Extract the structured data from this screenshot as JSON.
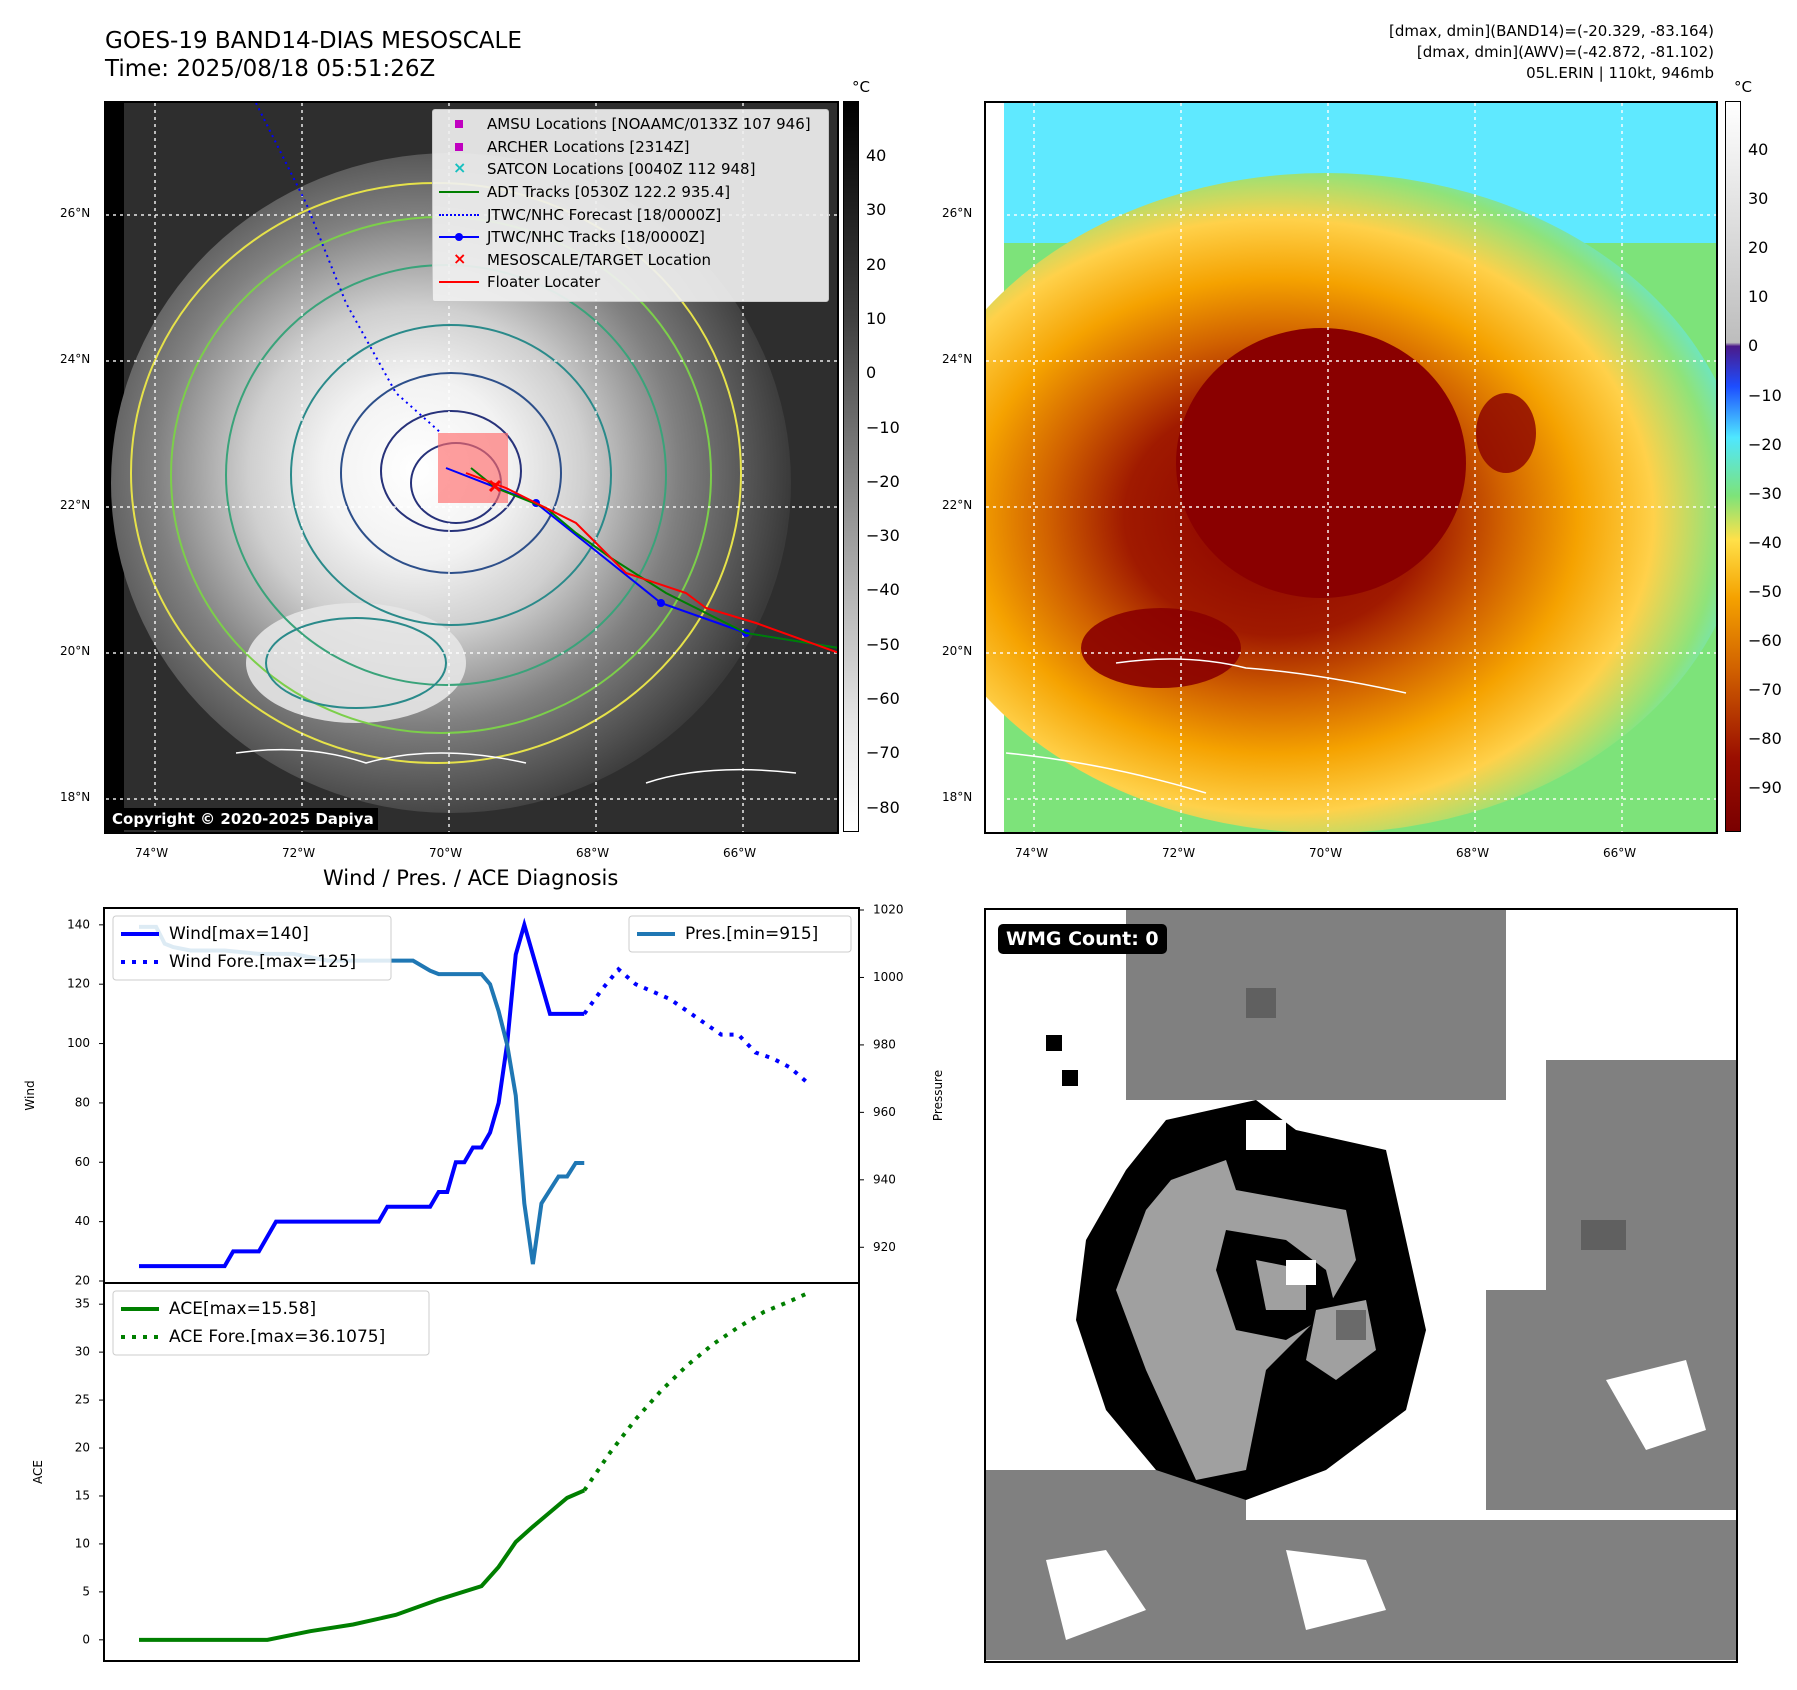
{
  "header": {
    "title_line1": "GOES-19 BAND14-DIAS MESOSCALE",
    "title_line2": "Time: 2025/08/18 05:51:26Z",
    "info_line1": "[dmax, dmin](BAND14)=(-20.329, -83.164)",
    "info_line2": "[dmax, dmin](AWV)=(-42.872, -81.102)",
    "info_line3": "05L.ERIN | 110kt, 946mb"
  },
  "maps": {
    "lat_labels": [
      "26°N",
      "24°N",
      "22°N",
      "20°N",
      "18°N"
    ],
    "lon_labels": [
      "74°W",
      "72°W",
      "70°W",
      "68°W",
      "66°W"
    ],
    "copyright": "Copyright © 2020-2025 Dapiya",
    "colorbar_unit": "°C",
    "band14_colorbar_ticks": [
      "40",
      "30",
      "20",
      "10",
      "0",
      "−10",
      "−20",
      "−30",
      "−40",
      "−50",
      "−60",
      "−70",
      "−80"
    ],
    "awv_colorbar_ticks": [
      "40",
      "30",
      "20",
      "10",
      "0",
      "−10",
      "−20",
      "−30",
      "−40",
      "−50",
      "−60",
      "−70",
      "−80",
      "−90"
    ],
    "colors": {
      "warm": "#f5a200",
      "cold": "#7a0000",
      "moist": "#4fe7ff",
      "dry": "#7de37a"
    }
  },
  "map_legend": [
    {
      "label": "AMSU Locations [NOAAMC/0133Z 107 946]",
      "symbol": "square",
      "color": "#c000c0"
    },
    {
      "label": "ARCHER Locations [2314Z]",
      "symbol": "square",
      "color": "#c000c0"
    },
    {
      "label": "SATCON Locations [0040Z 112 948]",
      "symbol": "x",
      "color": "#18c0c0"
    },
    {
      "label": "ADT Tracks [0530Z 122.2 935.4]",
      "symbol": "line",
      "color": "#007f00"
    },
    {
      "label": "JTWC/NHC Forecast [18/0000Z]",
      "symbol": "dotted",
      "color": "#0000ff"
    },
    {
      "label": "JTWC/NHC Tracks [18/0000Z]",
      "symbol": "line-dot",
      "color": "#0000ff"
    },
    {
      "label": "MESOSCALE/TARGET Location",
      "symbol": "x",
      "color": "#ff0000"
    },
    {
      "label": "Floater Locater",
      "symbol": "line",
      "color": "#ff0000"
    }
  ],
  "wmg": {
    "label": "WMG Count: 0"
  },
  "chart_data": [
    {
      "type": "line",
      "title": "Wind / Pres. / ACE Diagnosis",
      "ylabel": "Wind",
      "ylabel_right": "Pressure",
      "ylim": [
        20,
        145
      ],
      "ylim_right": [
        910,
        1020
      ],
      "yticks": [
        20,
        40,
        60,
        80,
        100,
        120,
        140
      ],
      "yticks_right": [
        920,
        940,
        960,
        980,
        1000,
        1020
      ],
      "x_range": [
        0,
        80
      ],
      "series": [
        {
          "name": "Wind[max=140]",
          "color": "#0000ff",
          "style": "solid",
          "axis": "left",
          "x": [
            0,
            10,
            11,
            14,
            16,
            21,
            28,
            29,
            34,
            35,
            36,
            37,
            38,
            39,
            40,
            41,
            42,
            43,
            44,
            45,
            46,
            48,
            52
          ],
          "y": [
            25,
            25,
            30,
            30,
            40,
            40,
            40,
            45,
            45,
            50,
            50,
            60,
            60,
            65,
            65,
            70,
            80,
            100,
            130,
            140,
            130,
            110,
            110
          ]
        },
        {
          "name": "Wind Fore.[max=125]",
          "color": "#0000ff",
          "style": "dotted",
          "axis": "left",
          "x": [
            52,
            54,
            56,
            58,
            62,
            66,
            68,
            70,
            72,
            74,
            76,
            78
          ],
          "y": [
            110,
            118,
            125,
            120,
            115,
            107,
            103,
            103,
            97,
            95,
            92,
            87
          ]
        },
        {
          "name": "Pres.[min=915]",
          "color": "#1f77b4",
          "style": "solid",
          "axis": "right",
          "x": [
            0,
            2,
            3,
            4,
            6,
            10,
            14,
            18,
            22,
            28,
            32,
            34,
            35,
            36,
            38,
            40,
            41,
            42,
            43,
            44,
            45,
            46,
            47,
            48,
            49,
            50,
            51,
            52
          ],
          "y": [
            1015,
            1015,
            1010,
            1009,
            1008,
            1008,
            1007,
            1007,
            1005,
            1005,
            1005,
            1002,
            1001,
            1001,
            1001,
            1001,
            998,
            990,
            980,
            965,
            933,
            915,
            933,
            937,
            941,
            941,
            945,
            945
          ]
        }
      ]
    },
    {
      "type": "line",
      "ylabel": "ACE",
      "ylim": [
        -2,
        37
      ],
      "yticks": [
        0,
        5,
        10,
        15,
        20,
        25,
        30,
        35
      ],
      "x_range": [
        0,
        80
      ],
      "series": [
        {
          "name": "ACE[max=15.58]",
          "color": "#007f00",
          "style": "solid",
          "x": [
            0,
            15,
            20,
            25,
            30,
            35,
            40,
            42,
            44,
            46,
            48,
            50,
            52
          ],
          "y": [
            0,
            0,
            0.9,
            1.6,
            2.6,
            4.2,
            5.6,
            7.6,
            10.2,
            11.8,
            13.3,
            14.8,
            15.58
          ]
        },
        {
          "name": "ACE Fore.[max=36.1075]",
          "color": "#007f00",
          "style": "dotted",
          "x": [
            52,
            55,
            58,
            61,
            64,
            67,
            70,
            73,
            76,
            78
          ],
          "y": [
            15.58,
            19.5,
            23,
            26,
            28.6,
            30.8,
            32.6,
            34.2,
            35.3,
            36.1075
          ]
        }
      ]
    }
  ]
}
